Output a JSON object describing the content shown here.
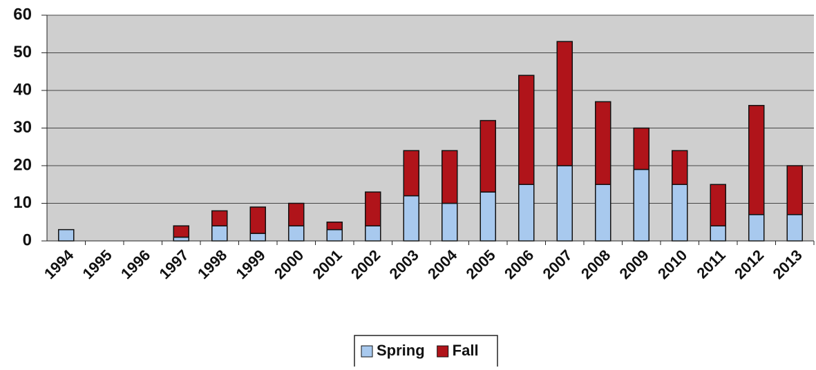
{
  "chart_data": {
    "type": "stacked_bar",
    "categories": [
      "1994",
      "1995",
      "1996",
      "1997",
      "1998",
      "1999",
      "2000",
      "2001",
      "2002",
      "2003",
      "2004",
      "2005",
      "2006",
      "2007",
      "2008",
      "2009",
      "2010",
      "2011",
      "2012",
      "2013"
    ],
    "series": [
      {
        "name": "Spring",
        "color": "#a8c9ee",
        "values": [
          3,
          0,
          0,
          1,
          4,
          2,
          4,
          3,
          4,
          12,
          10,
          13,
          15,
          20,
          15,
          19,
          15,
          4,
          7,
          7
        ]
      },
      {
        "name": "Fall",
        "color": "#b0141a",
        "values": [
          0,
          0,
          0,
          3,
          4,
          7,
          6,
          2,
          9,
          12,
          14,
          19,
          29,
          33,
          22,
          11,
          9,
          11,
          29,
          13
        ]
      }
    ],
    "ylim": [
      0,
      60
    ],
    "yticks": [
      0,
      10,
      20,
      30,
      40,
      50,
      60
    ],
    "grid": true,
    "legend": "bottom"
  }
}
